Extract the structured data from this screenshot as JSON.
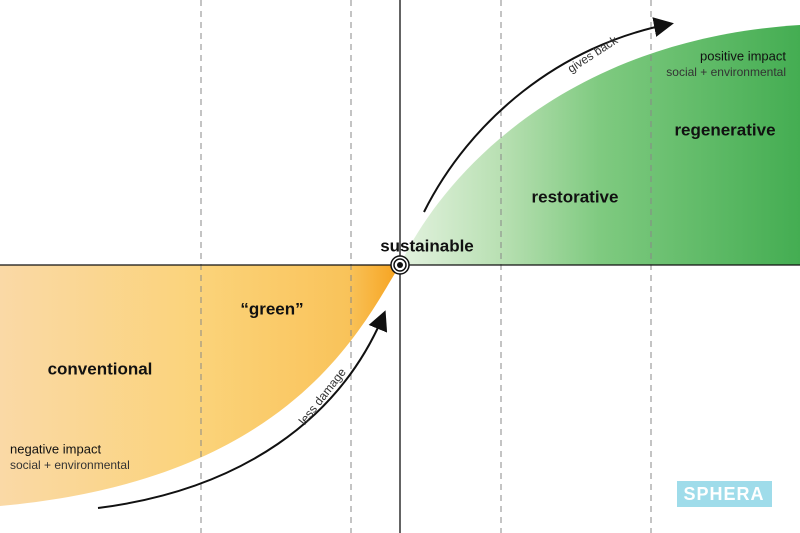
{
  "zones": {
    "conventional": "conventional",
    "green": "“green”",
    "sustainable": "sustainable",
    "restorative": "restorative",
    "regenerative": "regenerative"
  },
  "arrows": {
    "upper": "gives back",
    "lower": "less damage"
  },
  "positive": {
    "title": "positive impact",
    "subtitle": "social + environmental"
  },
  "negative": {
    "title": "negative impact",
    "subtitle": "social + environmental"
  },
  "logo": "SPHERA"
}
